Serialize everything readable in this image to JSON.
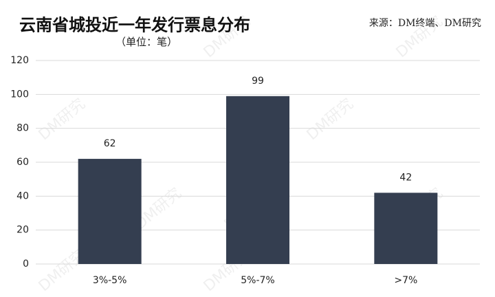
{
  "chart_data": {
    "type": "bar",
    "title": "云南省城投近一年发行票息分布",
    "subtitle": "（单位：笔）",
    "source": "来源：DM终端、DM研究",
    "watermark": "DM研究",
    "categories": [
      "3%-5%",
      "5%-7%",
      ">7%"
    ],
    "values": [
      62,
      99,
      42
    ],
    "color": "#343e50",
    "ylim": [
      0,
      120
    ],
    "yticks": [
      0,
      20,
      40,
      60,
      80,
      100,
      120
    ],
    "grid": true,
    "value_labels_shown": true
  }
}
